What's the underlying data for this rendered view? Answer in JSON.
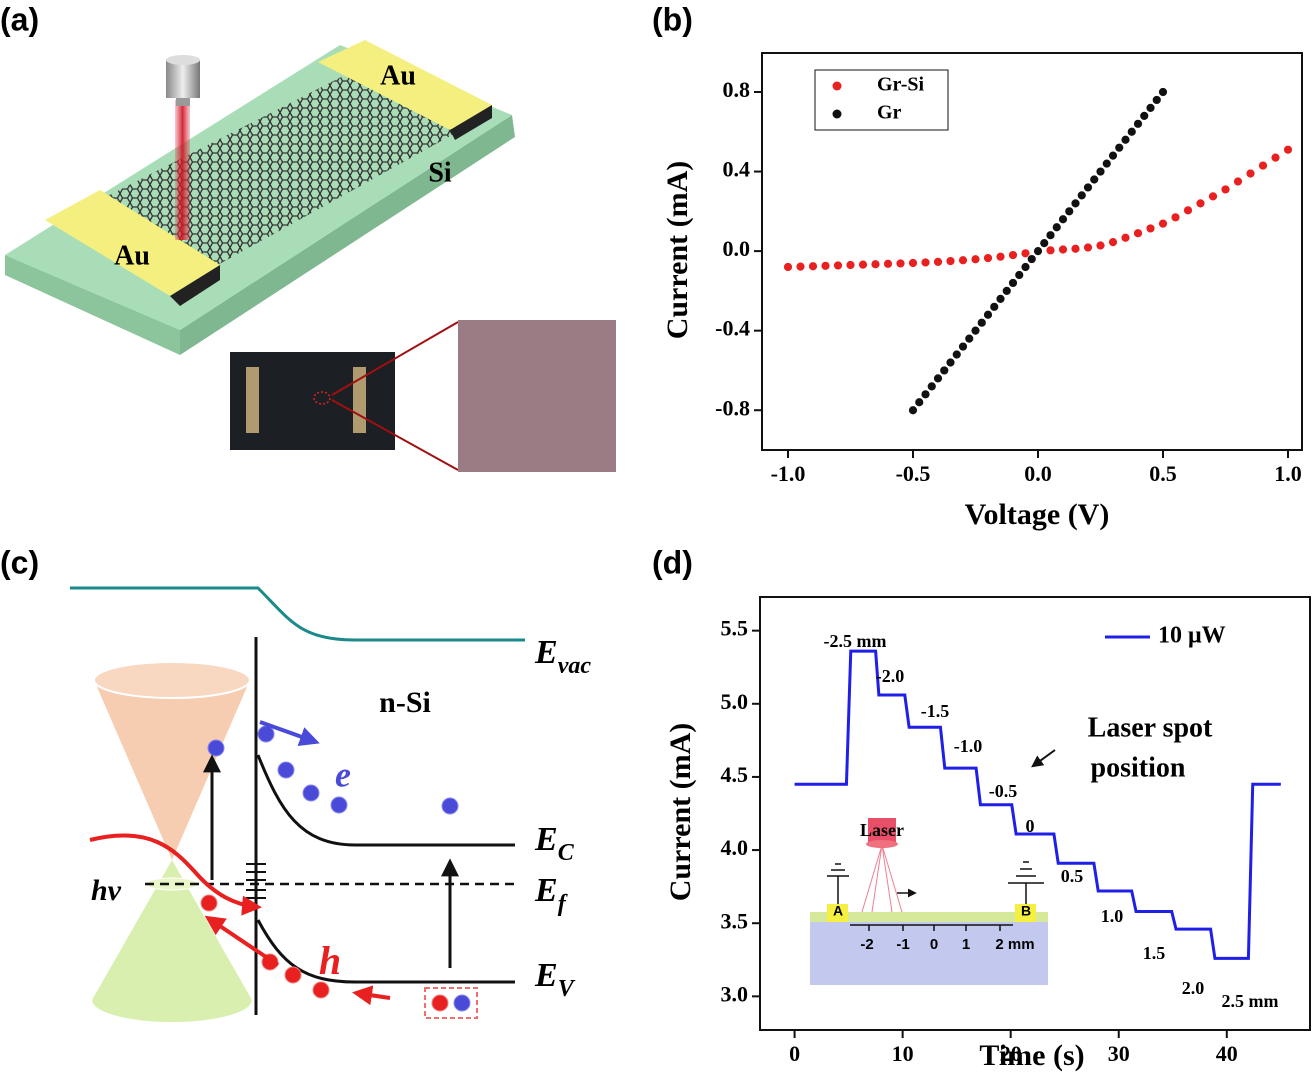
{
  "panels": {
    "labels": [
      "(a)",
      "(b)",
      "(c)",
      "(d)"
    ],
    "a": {
      "texts": [
        "Au",
        "Au",
        "Si"
      ]
    },
    "c": {
      "texts": [
        "n-Si",
        "e",
        "hv",
        "h"
      ],
      "levels": [
        {
          "main": "E",
          "sub": "vac"
        },
        {
          "main": "E",
          "sub": "C"
        },
        {
          "main": "E",
          "sub": "f"
        },
        {
          "main": "E",
          "sub": "V"
        }
      ]
    }
  },
  "chart_data": [
    {
      "type": "scatter",
      "xlabel": "Voltage (V)",
      "ylabel": "Current (mA)",
      "xlim": [
        -1.104,
        1.056
      ],
      "ylim": [
        -1.0,
        0.996
      ],
      "xticks": [
        {
          "value": -1,
          "label": "-1.0"
        },
        {
          "value": -0.5,
          "label": "-0.5"
        },
        {
          "value": 0,
          "label": "0.0"
        },
        {
          "value": 0.5,
          "label": "0.5"
        },
        {
          "value": 1,
          "label": "1.0"
        }
      ],
      "yticks": [
        {
          "value": -0.8,
          "label": "-0.8"
        },
        {
          "value": -0.4,
          "label": "-0.4"
        },
        {
          "value": 0,
          "label": "0.0"
        },
        {
          "value": 0.4,
          "label": "0.4"
        },
        {
          "value": 0.8,
          "label": "0.8"
        }
      ],
      "legend": "upper left",
      "series": [
        {
          "name": "Gr-Si",
          "color": "#e8201f",
          "x": [
            -1.0,
            -0.95,
            -0.9,
            -0.85,
            -0.8,
            -0.75,
            -0.7,
            -0.65,
            -0.6,
            -0.55,
            -0.5,
            -0.45,
            -0.4,
            -0.35,
            -0.3,
            -0.25,
            -0.2,
            -0.15,
            -0.1,
            -0.05,
            0,
            0.05,
            0.1,
            0.15,
            0.2,
            0.25,
            0.3,
            0.35,
            0.4,
            0.45,
            0.5,
            0.55,
            0.6,
            0.65,
            0.7,
            0.75,
            0.8,
            0.85,
            0.9,
            0.95,
            1.0
          ],
          "values": [
            -0.08,
            -0.078,
            -0.076,
            -0.074,
            -0.072,
            -0.07,
            -0.068,
            -0.066,
            -0.064,
            -0.062,
            -0.06,
            -0.057,
            -0.054,
            -0.05,
            -0.046,
            -0.041,
            -0.035,
            -0.028,
            -0.02,
            -0.011,
            0,
            0.004,
            0.008,
            0.012,
            0.018,
            0.028,
            0.045,
            0.067,
            0.09,
            0.114,
            0.138,
            0.17,
            0.205,
            0.24,
            0.275,
            0.31,
            0.35,
            0.39,
            0.43,
            0.47,
            0.51
          ]
        },
        {
          "name": "Gr",
          "color": "#111111",
          "x": [
            -0.5,
            -0.475,
            -0.45,
            -0.425,
            -0.4,
            -0.375,
            -0.35,
            -0.325,
            -0.3,
            -0.275,
            -0.25,
            -0.225,
            -0.2,
            -0.175,
            -0.15,
            -0.125,
            -0.1,
            -0.075,
            -0.05,
            -0.025,
            0,
            0.025,
            0.05,
            0.075,
            0.1,
            0.125,
            0.15,
            0.175,
            0.2,
            0.225,
            0.25,
            0.275,
            0.3,
            0.325,
            0.35,
            0.375,
            0.4,
            0.425,
            0.45,
            0.475,
            0.5
          ],
          "values": [
            -0.8,
            -0.76,
            -0.72,
            -0.68,
            -0.64,
            -0.6,
            -0.56,
            -0.52,
            -0.48,
            -0.44,
            -0.4,
            -0.36,
            -0.32,
            -0.28,
            -0.24,
            -0.2,
            -0.16,
            -0.12,
            -0.08,
            -0.04,
            0,
            0.04,
            0.08,
            0.12,
            0.16,
            0.2,
            0.24,
            0.28,
            0.32,
            0.36,
            0.4,
            0.44,
            0.48,
            0.52,
            0.56,
            0.6,
            0.64,
            0.68,
            0.72,
            0.76,
            0.8
          ]
        }
      ]
    },
    {
      "type": "line",
      "xlabel": "Time (s)",
      "ylabel": "Current (mA)",
      "xlim": [
        -3.2,
        47.7
      ],
      "ylim": [
        2.77,
        5.73
      ],
      "xticks": [
        0,
        10,
        20,
        30,
        40
      ],
      "yticks": [
        {
          "value": 3,
          "label": "3.0"
        },
        {
          "value": 3.5,
          "label": "3.5"
        },
        {
          "value": 4,
          "label": "4.0"
        },
        {
          "value": 4.5,
          "label": "4.5"
        },
        {
          "value": 5,
          "label": "5.0"
        },
        {
          "value": 5.5,
          "label": "5.5"
        }
      ],
      "legend": "upper right",
      "series": [
        {
          "name": "10 μW",
          "color": "#1f1fe8",
          "x": [
            0,
            4.8,
            5.2,
            7.5,
            7.8,
            10.2,
            10.6,
            13.5,
            13.9,
            16.8,
            17.2,
            20.1,
            20.5,
            24.0,
            24.4,
            27.7,
            28.1,
            31.2,
            31.6,
            34.9,
            35.3,
            38.5,
            38.9,
            42.0,
            42.4,
            45
          ],
          "values": [
            4.45,
            4.45,
            5.36,
            5.36,
            5.06,
            5.06,
            4.84,
            4.84,
            4.56,
            4.56,
            4.31,
            4.31,
            4.11,
            4.11,
            3.91,
            3.91,
            3.72,
            3.72,
            3.58,
            3.58,
            3.46,
            3.46,
            3.26,
            3.26,
            4.45,
            4.45
          ]
        }
      ],
      "annotations": [
        "-2.5 mm",
        "-2.0",
        "-1.5",
        "-1.0",
        "-0.5",
        "0",
        "0.5",
        "1.0",
        "1.5",
        "2.0",
        "2.5 mm",
        "Laser spot",
        "position"
      ],
      "inset": [
        "Laser",
        "A",
        "B",
        "-2",
        "-1",
        "0",
        "1",
        "2 mm"
      ]
    }
  ]
}
